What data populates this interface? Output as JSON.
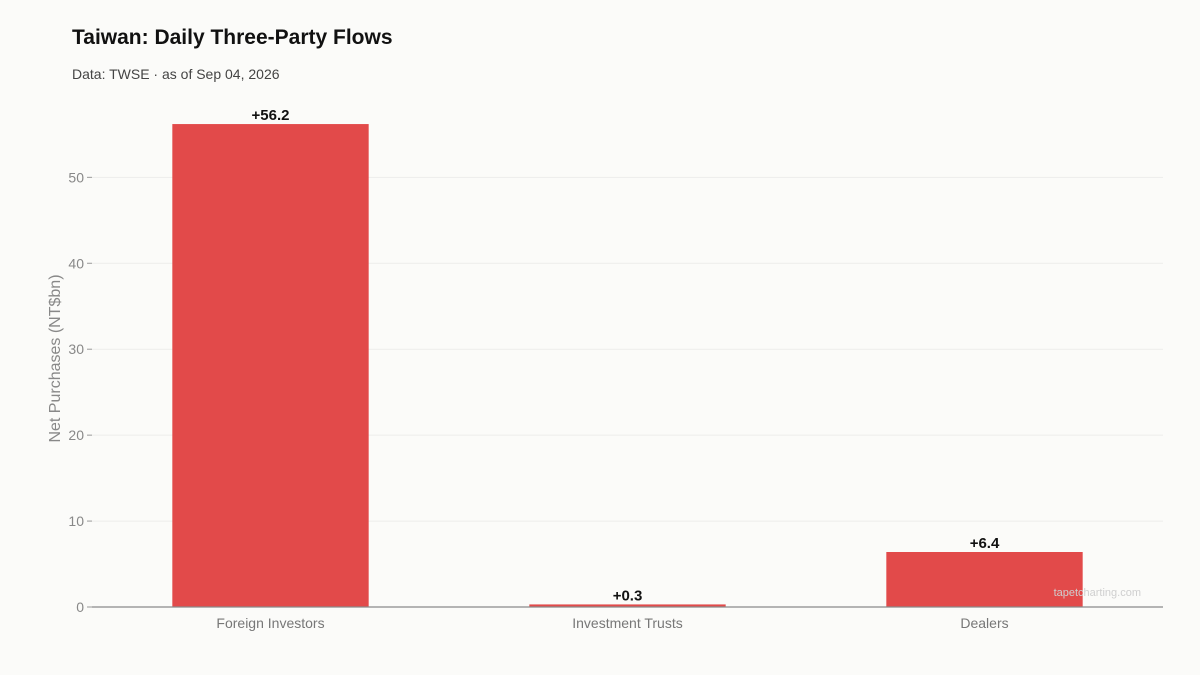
{
  "chart_data": {
    "type": "bar",
    "title": "Taiwan: Daily Three-Party Flows",
    "subtitle": "Data: TWSE · as of Sep 04, 2026",
    "xlabel": "",
    "ylabel": "Net Purchases (NT$bn)",
    "categories": [
      "Foreign Investors",
      "Investment Trusts",
      "Dealers"
    ],
    "values": [
      56.2,
      0.3,
      6.4
    ],
    "value_labels": [
      "+56.2",
      "+0.3",
      "+6.4"
    ],
    "ylim": [
      0,
      59
    ],
    "yticks": [
      0,
      10,
      20,
      30,
      40,
      50
    ],
    "grid": true,
    "bar_color": "#e24a4a",
    "watermark": "tapetcharting.com"
  }
}
